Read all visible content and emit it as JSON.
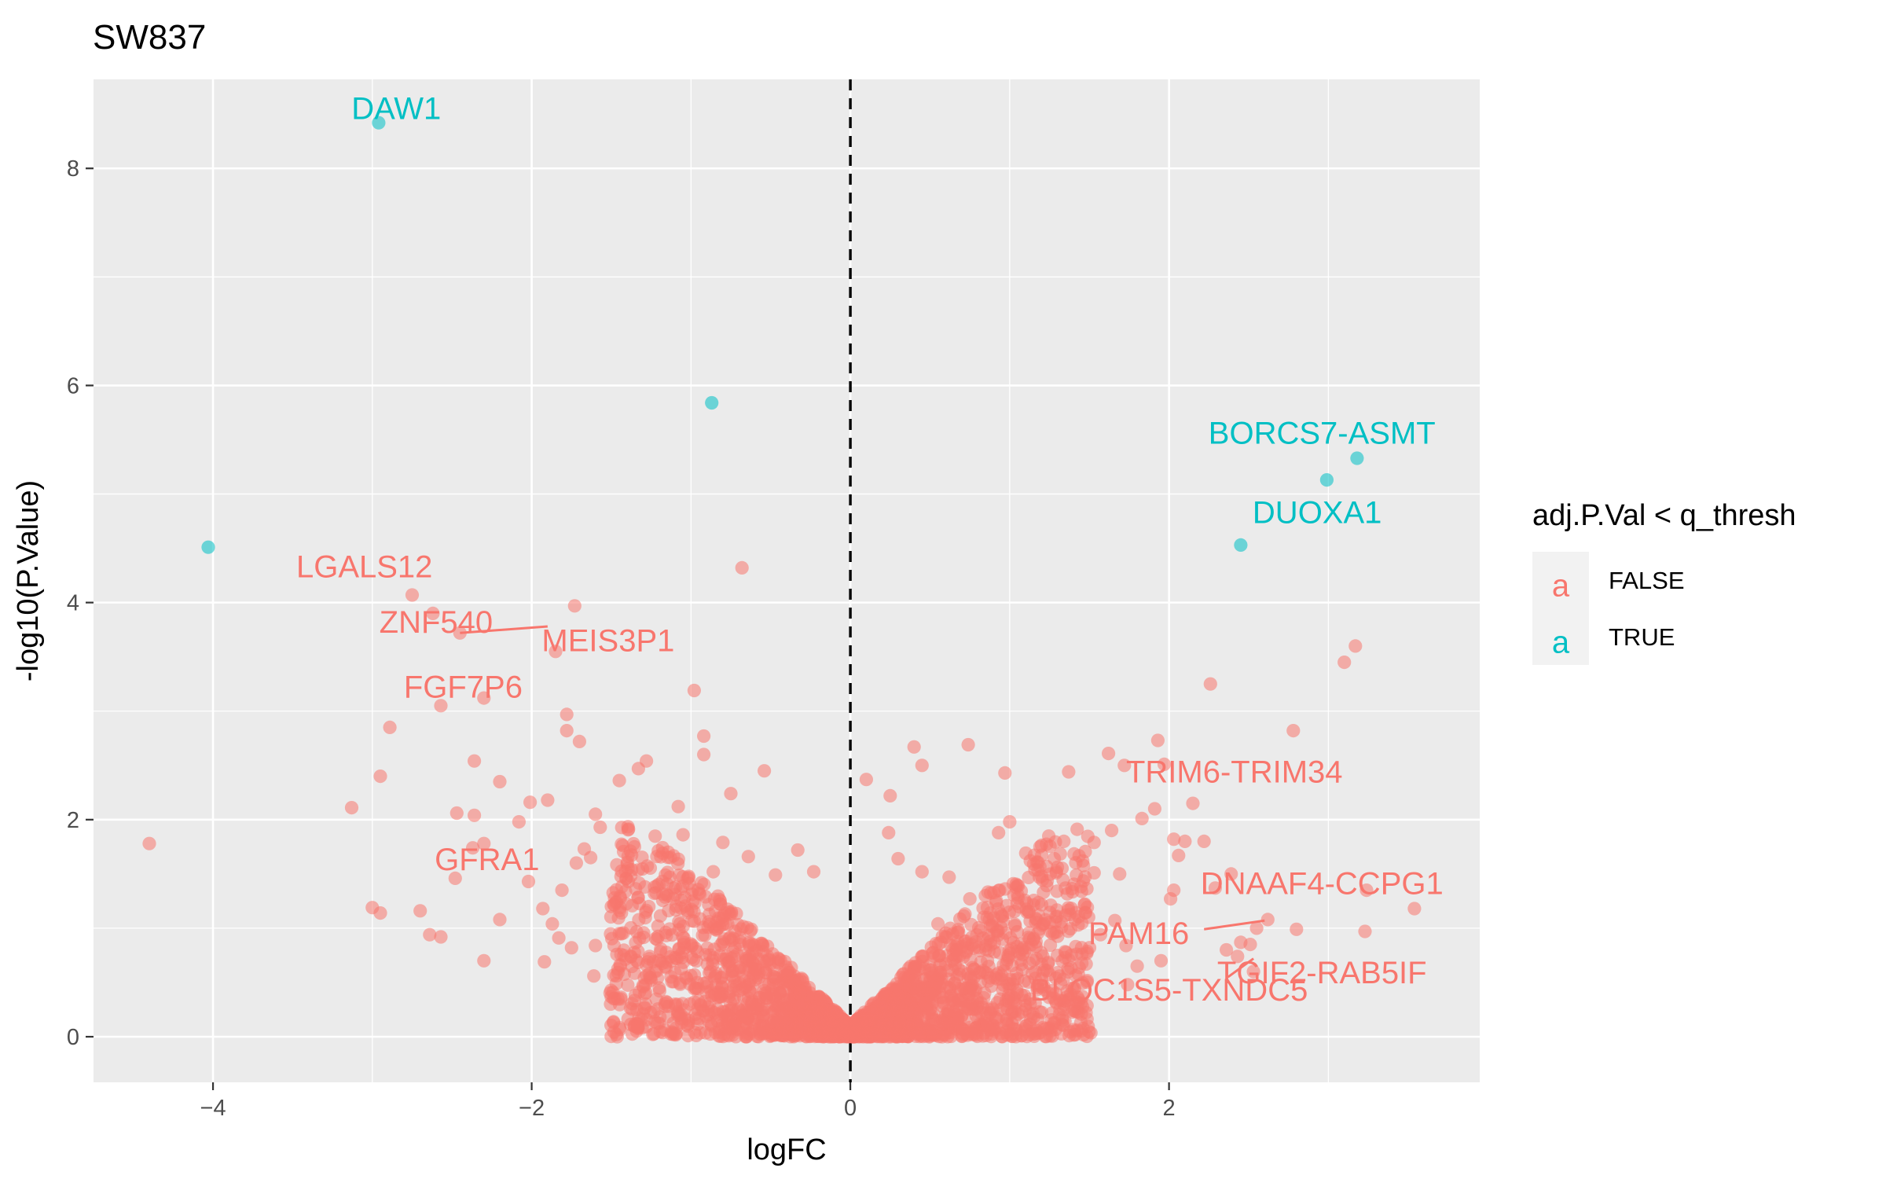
{
  "chart_data": {
    "type": "scatter",
    "title": "SW837",
    "xlabel": "logFC",
    "ylabel": "-log10(P.Value)",
    "xlim": [
      -4.75,
      3.95
    ],
    "ylim": [
      -0.42,
      8.82
    ],
    "x_ticks": [
      -4,
      -2,
      0,
      2
    ],
    "y_ticks": [
      0,
      2,
      4,
      6,
      8
    ],
    "x_minor": [
      -3,
      -1,
      1,
      3
    ],
    "y_minor": [
      1,
      3,
      5,
      7
    ],
    "grid": true,
    "vline": {
      "x": 0,
      "style": "dashed"
    },
    "legend": {
      "title": "adj.P.Val < q_thresh",
      "position": "right",
      "key_glyph": "a",
      "entries": [
        {
          "label": "FALSE",
          "color": "#F8766D"
        },
        {
          "label": "TRUE",
          "color": "#00BFC4"
        }
      ]
    },
    "colors": {
      "FALSE": "#F8766D",
      "TRUE": "#00BFC4",
      "panel": "#EBEBEB"
    },
    "series": [
      {
        "name": "TRUE",
        "points": [
          [
            -2.96,
            8.42
          ],
          [
            -0.87,
            5.84
          ],
          [
            -4.03,
            4.51
          ],
          [
            2.99,
            5.13
          ],
          [
            3.18,
            5.33
          ],
          [
            2.45,
            4.53
          ]
        ]
      },
      {
        "name": "FALSE",
        "points": [
          [
            -4.4,
            1.78
          ],
          [
            -2.75,
            4.07
          ],
          [
            -2.62,
            3.9
          ],
          [
            -2.45,
            3.72
          ],
          [
            -1.73,
            3.97
          ],
          [
            -1.85,
            3.55
          ],
          [
            -2.3,
            3.12
          ],
          [
            -2.57,
            3.05
          ],
          [
            -2.89,
            2.85
          ],
          [
            -2.95,
            2.4
          ],
          [
            -3.13,
            2.11
          ],
          [
            -2.36,
            2.54
          ],
          [
            -1.78,
            2.97
          ],
          [
            -1.78,
            2.82
          ],
          [
            -1.7,
            2.72
          ],
          [
            -1.9,
            2.18
          ],
          [
            -2.01,
            2.16
          ],
          [
            -2.2,
            2.35
          ],
          [
            -2.08,
            1.98
          ],
          [
            -2.47,
            2.06
          ],
          [
            -2.36,
            2.04
          ],
          [
            -3.0,
            1.19
          ],
          [
            -2.95,
            1.14
          ],
          [
            -2.7,
            1.16
          ],
          [
            -2.64,
            0.94
          ],
          [
            -2.57,
            0.92
          ],
          [
            -2.2,
            1.08
          ],
          [
            -2.3,
            0.7
          ],
          [
            -2.48,
            1.46
          ],
          [
            -2.3,
            1.78
          ],
          [
            -2.37,
            1.74
          ],
          [
            -2.02,
            1.43
          ],
          [
            -0.98,
            3.19
          ],
          [
            -0.92,
            2.77
          ],
          [
            -0.68,
            4.32
          ],
          [
            -0.92,
            2.6
          ],
          [
            -0.75,
            2.24
          ],
          [
            -0.54,
            2.45
          ],
          [
            -1.28,
            2.54
          ],
          [
            -1.33,
            2.47
          ],
          [
            -1.08,
            2.12
          ],
          [
            -1.45,
            2.36
          ],
          [
            0.4,
            2.67
          ],
          [
            0.74,
            2.69
          ],
          [
            0.45,
            2.5
          ],
          [
            0.1,
            2.37
          ],
          [
            0.25,
            2.22
          ],
          [
            0.97,
            2.43
          ],
          [
            1.37,
            2.44
          ],
          [
            1.62,
            2.61
          ],
          [
            1.72,
            2.5
          ],
          [
            1.93,
            2.73
          ],
          [
            1.97,
            2.51
          ],
          [
            2.26,
            3.25
          ],
          [
            2.78,
            2.82
          ],
          [
            3.1,
            3.45
          ],
          [
            3.17,
            3.6
          ],
          [
            2.15,
            2.15
          ],
          [
            2.03,
            1.82
          ],
          [
            2.1,
            1.8
          ],
          [
            2.22,
            1.8
          ],
          [
            1.83,
            2.01
          ],
          [
            1.91,
            2.1
          ],
          [
            1.64,
            1.9
          ],
          [
            1.53,
            1.79
          ],
          [
            2.01,
            1.27
          ],
          [
            2.03,
            1.35
          ],
          [
            2.06,
            1.67
          ],
          [
            2.39,
            1.5
          ],
          [
            2.29,
            1.37
          ],
          [
            2.62,
            1.08
          ],
          [
            2.55,
            1.0
          ],
          [
            2.8,
            0.99
          ],
          [
            2.51,
            0.85
          ],
          [
            2.45,
            0.87
          ],
          [
            2.36,
            0.8
          ],
          [
            2.43,
            0.74
          ],
          [
            2.53,
            0.6
          ],
          [
            3.24,
            1.35
          ],
          [
            3.54,
            1.18
          ],
          [
            3.23,
            0.97
          ],
          [
            1.95,
            0.7
          ],
          [
            1.8,
            0.65
          ],
          [
            1.74,
            0.48
          ],
          [
            1.42,
            0.76
          ],
          [
            1.29,
            0.54
          ],
          [
            1.16,
            0.31
          ],
          [
            0.97,
            0.29
          ],
          [
            1.15,
            0.18
          ],
          [
            0.98,
            0.15
          ],
          [
            0.7,
            0.2
          ],
          [
            1.0,
            1.98
          ],
          [
            0.93,
            1.88
          ],
          [
            1.19,
            1.75
          ],
          [
            1.34,
            1.8
          ],
          [
            1.53,
            1.51
          ],
          [
            1.69,
            1.5
          ],
          [
            1.28,
            1.64
          ],
          [
            1.17,
            1.61
          ],
          [
            -1.6,
            2.05
          ],
          [
            -1.67,
            1.73
          ],
          [
            -1.63,
            1.65
          ],
          [
            -1.72,
            1.6
          ],
          [
            -1.81,
            1.35
          ],
          [
            -1.93,
            1.18
          ],
          [
            -1.87,
            1.04
          ],
          [
            -1.83,
            0.91
          ],
          [
            -1.75,
            0.82
          ],
          [
            -1.92,
            0.69
          ],
          [
            -1.61,
            0.56
          ],
          [
            -1.49,
            0.41
          ],
          [
            -1.29,
            0.27
          ],
          [
            -1.1,
            0.3
          ],
          [
            -1.57,
            1.93
          ],
          [
            -1.4,
            1.59
          ],
          [
            -1.5,
            1.2
          ],
          [
            -1.45,
            0.95
          ],
          [
            -1.6,
            0.84
          ],
          [
            -1.26,
            0.74
          ],
          [
            -1.2,
            0.45
          ],
          [
            -1.35,
            0.38
          ],
          [
            -1.05,
            1.86
          ],
          [
            -1.13,
            1.65
          ],
          [
            -1.18,
            1.43
          ],
          [
            -0.99,
            1.35
          ],
          [
            -1.07,
            1.04
          ],
          [
            -0.8,
            1.79
          ],
          [
            -0.86,
            1.52
          ],
          [
            -0.64,
            1.66
          ],
          [
            -0.47,
            1.49
          ],
          [
            -0.33,
            1.72
          ],
          [
            -0.23,
            1.52
          ],
          [
            0.24,
            1.88
          ],
          [
            0.3,
            1.64
          ],
          [
            0.45,
            1.52
          ],
          [
            0.62,
            1.47
          ],
          [
            0.75,
            1.27
          ],
          [
            0.86,
            1.19
          ],
          [
            1.05,
            1.31
          ],
          [
            1.18,
            1.12
          ],
          [
            1.35,
            1.37
          ],
          [
            1.43,
            1.03
          ],
          [
            1.57,
            0.94
          ],
          [
            1.66,
            1.07
          ],
          [
            1.73,
            0.84
          ],
          [
            1.48,
            0.67
          ],
          [
            1.32,
            0.49
          ],
          [
            1.27,
            0.95
          ],
          [
            1.12,
            0.82
          ],
          [
            0.96,
            0.66
          ],
          [
            0.86,
            0.58
          ],
          [
            0.71,
            0.45
          ],
          [
            0.58,
            0.36
          ],
          [
            0.55,
            1.04
          ]
        ]
      }
    ],
    "annotations": [
      {
        "text": "DAW1",
        "x": -2.85,
        "y": 8.53,
        "group": "TRUE"
      },
      {
        "text": "BORCS7-ASMT",
        "x": 2.96,
        "y": 5.54,
        "group": "TRUE"
      },
      {
        "text": "DUOXA1",
        "x": 2.93,
        "y": 4.81,
        "group": "TRUE"
      },
      {
        "text": "LGALS12",
        "x": -3.05,
        "y": 4.31,
        "group": "FALSE"
      },
      {
        "text": "ZNF540",
        "x": -2.6,
        "y": 3.8,
        "group": "FALSE"
      },
      {
        "text": "MEIS3P1",
        "x": -1.52,
        "y": 3.63,
        "group": "FALSE"
      },
      {
        "text": "FGF7P6",
        "x": -2.43,
        "y": 3.2,
        "group": "FALSE"
      },
      {
        "text": "TRIM6-TRIM34",
        "x": 2.41,
        "y": 2.42,
        "group": "FALSE"
      },
      {
        "text": "GFRA1",
        "x": -2.28,
        "y": 1.61,
        "group": "FALSE"
      },
      {
        "text": "DNAAF4-CCPG1",
        "x": 2.96,
        "y": 1.39,
        "group": "FALSE"
      },
      {
        "text": "PAM16",
        "x": 1.81,
        "y": 0.93,
        "group": "FALSE"
      },
      {
        "text": "TGIF2-RAB5IF",
        "x": 2.96,
        "y": 0.57,
        "group": "FALSE"
      },
      {
        "text": "BLOC1S5-TXNDC5",
        "x": 2.0,
        "y": 0.41,
        "group": "FALSE"
      }
    ],
    "segments": [
      {
        "x1": -2.45,
        "y1": 3.72,
        "x2": -1.9,
        "y2": 3.78,
        "group": "FALSE"
      },
      {
        "x1": 2.6,
        "y1": 1.07,
        "x2": 2.22,
        "y2": 0.99,
        "group": "FALSE"
      },
      {
        "x1": 2.53,
        "y1": 0.72,
        "x2": 2.37,
        "y2": 0.55,
        "group": "FALSE"
      }
    ]
  }
}
